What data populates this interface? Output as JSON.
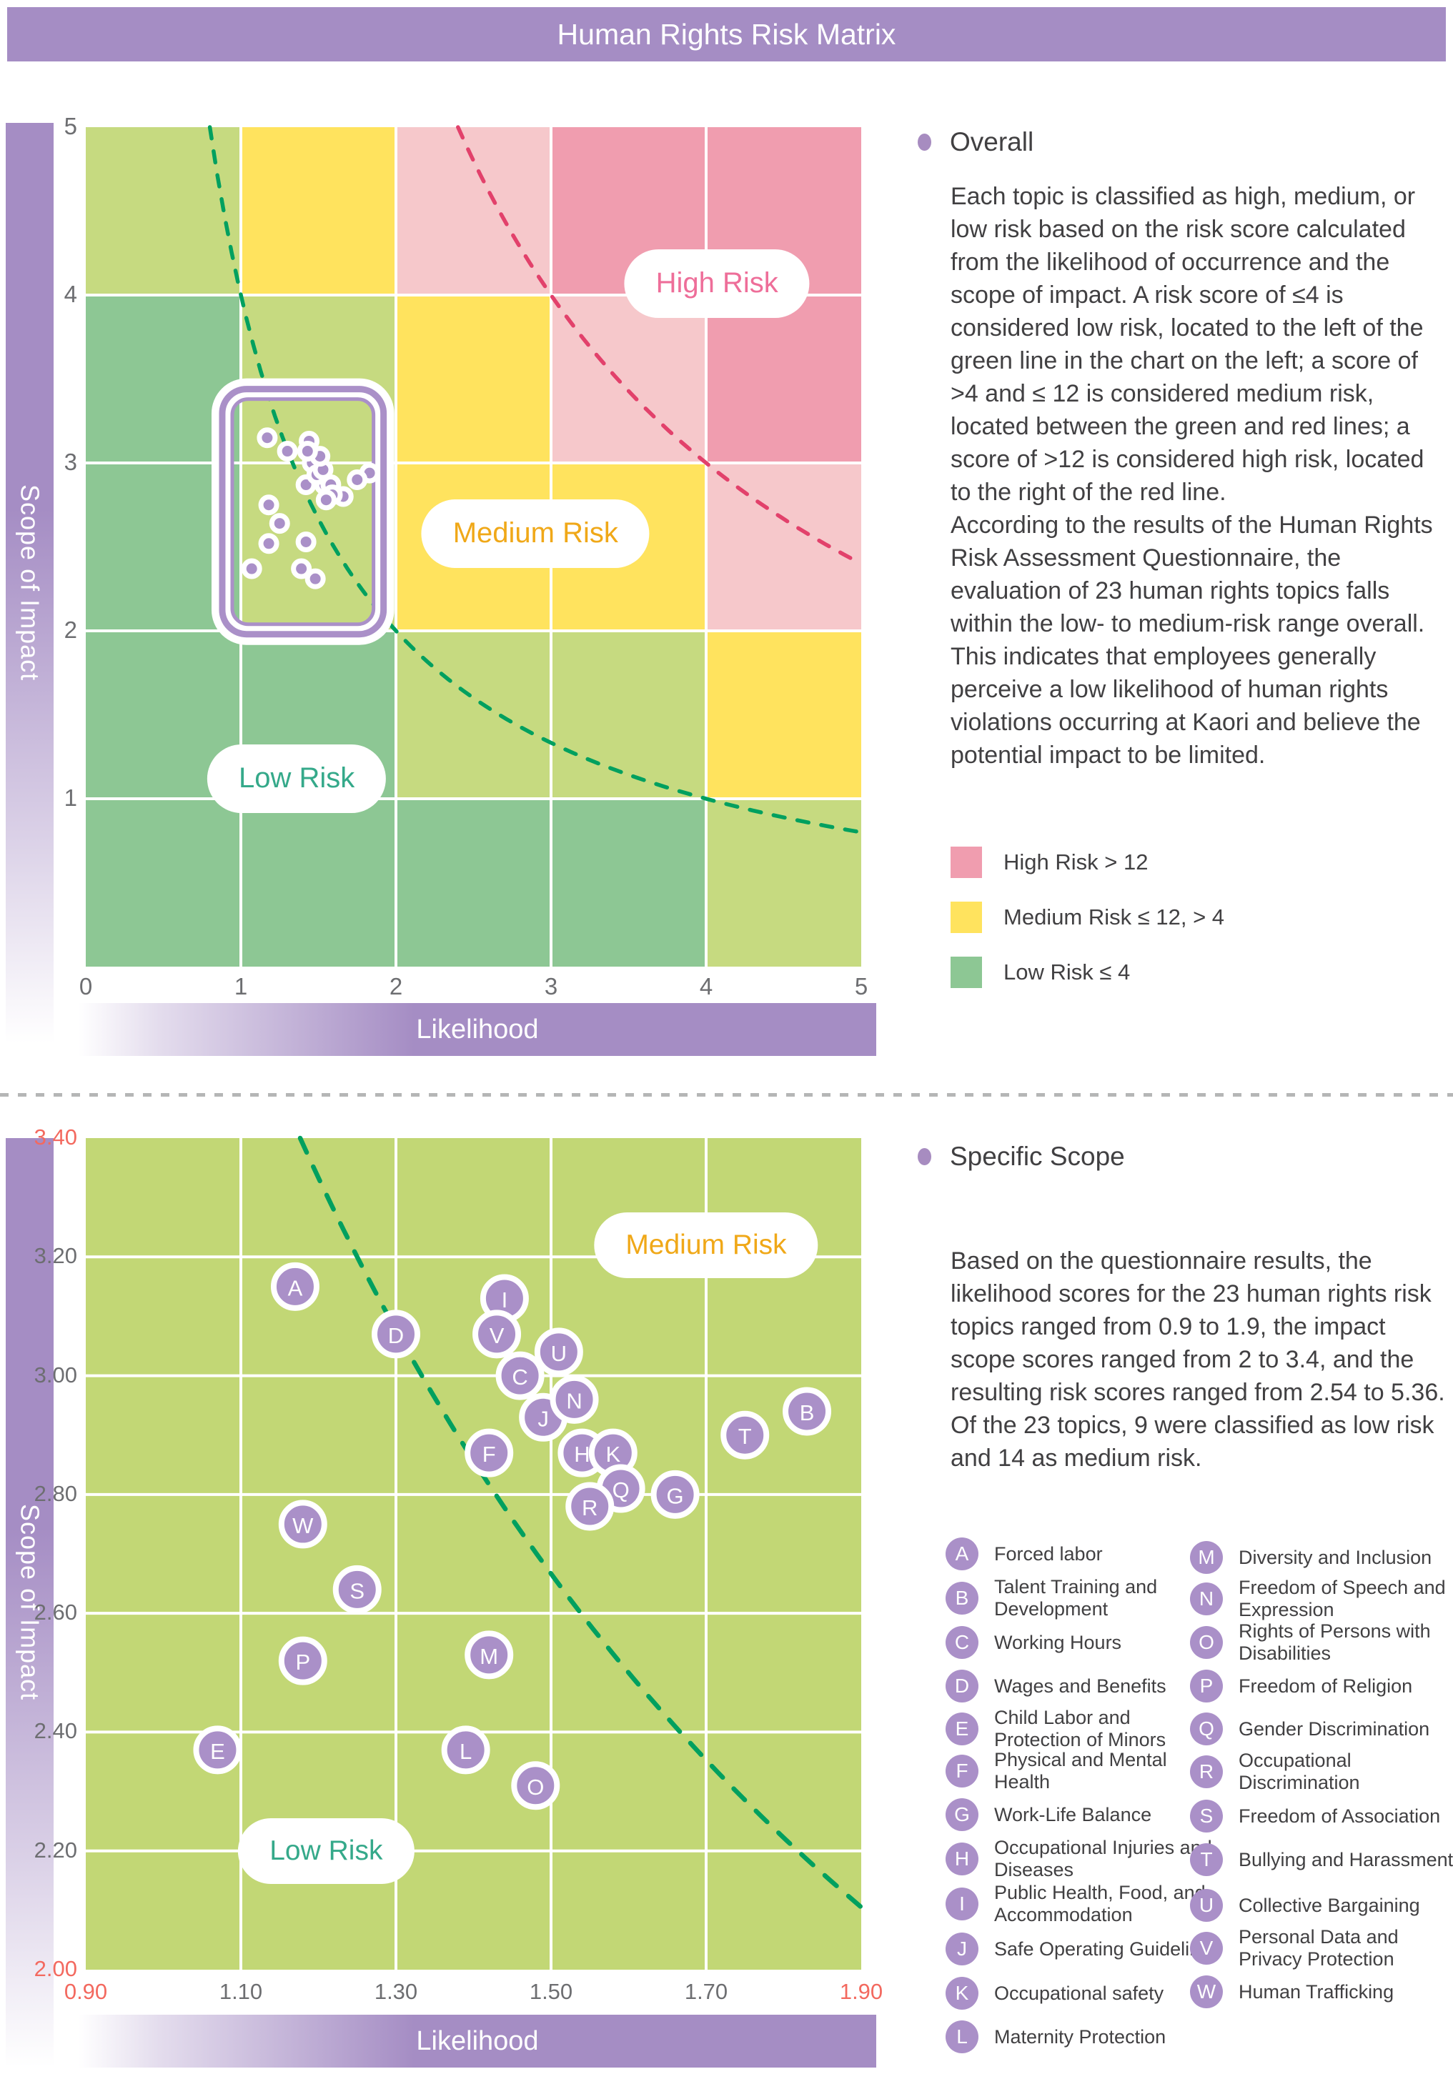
{
  "title": "Human Rights Risk Matrix",
  "palette": {
    "purple_bar": "#a58dc4",
    "dot_purple": "#aa90c8",
    "green_cell": "#8dc794",
    "yellow_green_cell": "#c6da80",
    "scatter_bg": "#c2d775",
    "yellow_cell": "#ffe35e",
    "light_pink_cell": "#f6c8cb",
    "dark_pink_cell": "#f09daf",
    "green_line": "#00a05f",
    "red_line": "#e2416b",
    "high_risk_text": "#ee6e99",
    "medium_risk_text": "#f0a818",
    "low_risk_text": "#35a98a",
    "tick_gray": "#6d6e71",
    "tick_accent": "#f3695f",
    "body_text": "#414042"
  },
  "axis": {
    "x_label": "Likelihood",
    "y_label": "Scope of Impact"
  },
  "overall": {
    "heading": "Overall",
    "p1": "Each topic is classified as high, medium, or low risk based on the risk score calculated from the likelihood of occurrence and the scope of impact. A risk score of ≤4 is considered low risk, located to the left of the green line in the chart on the left; a score of >4 and ≤ 12 is considered medium risk, located between the green and red lines; a score of >12 is considered high risk, located to the right of the red line.",
    "p2": "According to the results of the Human Rights Risk Assessment Questionnaire, the evaluation of 23 human rights topics falls within the low- to medium-risk range overall. This indicates that employees generally perceive a low likelihood of human rights violations occurring at Kaori and believe the potential impact to be limited.",
    "legend": [
      {
        "label": "High Risk > 12",
        "color": "#f09daf"
      },
      {
        "label": "Medium Risk ≤ 12, > 4",
        "color": "#ffe35e"
      },
      {
        "label": "Low Risk ≤ 4",
        "color": "#8dc794"
      }
    ]
  },
  "specific": {
    "heading": "Specific Scope",
    "p1": "Based on the questionnaire results, the likelihood scores for the 23 human rights risk topics ranged from 0.9 to 1.9, the impact scope scores ranged from 2 to 3.4, and the resulting risk scores ranged from 2.54 to 5.36. Of the 23 topics, 9 were classified as low risk and 14 as medium risk."
  },
  "topics": [
    {
      "letter": "A",
      "label": "Forced labor",
      "likelihood": 1.17,
      "impact": 3.15
    },
    {
      "letter": "B",
      "label": "Talent Training and\nDevelopment",
      "likelihood": 1.83,
      "impact": 2.94
    },
    {
      "letter": "C",
      "label": "Working Hours",
      "likelihood": 1.46,
      "impact": 3.0
    },
    {
      "letter": "D",
      "label": "Wages and Benefits",
      "likelihood": 1.3,
      "impact": 3.07
    },
    {
      "letter": "E",
      "label": "Child Labor and\nProtection of Minors",
      "likelihood": 1.07,
      "impact": 2.37
    },
    {
      "letter": "F",
      "label": "Physical and Mental\nHealth",
      "likelihood": 1.42,
      "impact": 2.87
    },
    {
      "letter": "G",
      "label": "Work-Life Balance",
      "likelihood": 1.66,
      "impact": 2.8
    },
    {
      "letter": "H",
      "label": "Occupational Injuries and\nDiseases",
      "likelihood": 1.54,
      "impact": 2.87
    },
    {
      "letter": "I",
      "label": "Public Health, Food, and\nAccommodation",
      "likelihood": 1.44,
      "impact": 3.13
    },
    {
      "letter": "J",
      "label": "Safe Operating Guidelines",
      "likelihood": 1.49,
      "impact": 2.93
    },
    {
      "letter": "K",
      "label": "Occupational safety",
      "likelihood": 1.58,
      "impact": 2.87
    },
    {
      "letter": "L",
      "label": "Maternity Protection",
      "likelihood": 1.39,
      "impact": 2.37
    },
    {
      "letter": "M",
      "label": "Diversity and Inclusion",
      "likelihood": 1.42,
      "impact": 2.53
    },
    {
      "letter": "N",
      "label": "Freedom of Speech and\nExpression",
      "likelihood": 1.53,
      "impact": 2.96
    },
    {
      "letter": "O",
      "label": "Rights of Persons with\nDisabilities",
      "likelihood": 1.48,
      "impact": 2.31
    },
    {
      "letter": "P",
      "label": "Freedom of Religion",
      "likelihood": 1.18,
      "impact": 2.52
    },
    {
      "letter": "Q",
      "label": "Gender Discrimination",
      "likelihood": 1.59,
      "impact": 2.81
    },
    {
      "letter": "R",
      "label": "Occupational\nDiscrimination",
      "likelihood": 1.55,
      "impact": 2.78
    },
    {
      "letter": "S",
      "label": "Freedom of Association",
      "likelihood": 1.25,
      "impact": 2.64
    },
    {
      "letter": "T",
      "label": "Bullying and Harassment",
      "likelihood": 1.75,
      "impact": 2.9
    },
    {
      "letter": "U",
      "label": "Collective Bargaining",
      "likelihood": 1.51,
      "impact": 3.04
    },
    {
      "letter": "V",
      "label": "Personal Data and\nPrivacy Protection",
      "likelihood": 1.43,
      "impact": 3.07
    },
    {
      "letter": "W",
      "label": "Human Trafficking",
      "likelihood": 1.18,
      "impact": 2.75
    }
  ],
  "chart_data": [
    {
      "type": "heatmap",
      "title": "Overall risk matrix",
      "xlabel": "Likelihood",
      "ylabel": "Scope of Impact",
      "xlim": [
        0,
        5
      ],
      "ylim": [
        0,
        5
      ],
      "xticks": [
        0,
        1,
        2,
        3,
        4,
        5
      ],
      "yticks": [
        1,
        2,
        3,
        4,
        5
      ],
      "grid": true,
      "cell_colors_rows_top_to_bottom": [
        [
          "yg",
          "y",
          "lp",
          "dp",
          "dp"
        ],
        [
          "g",
          "yg",
          "y",
          "lp",
          "dp"
        ],
        [
          "g",
          "yg",
          "y",
          "y",
          "lp"
        ],
        [
          "g",
          "g",
          "yg",
          "yg",
          "y"
        ],
        [
          "g",
          "g",
          "g",
          "g",
          "yg"
        ]
      ],
      "low_threshold": 4,
      "high_threshold": 12,
      "highlight_box": {
        "x0": 0.88,
        "x1": 1.92,
        "y0": 1.98,
        "y1": 3.44
      },
      "zone_labels": [
        {
          "text": "High Risk",
          "x": 4.07,
          "y": 4.07,
          "style": "high"
        },
        {
          "text": "Medium Risk",
          "x": 2.9,
          "y": 2.58,
          "style": "medium"
        },
        {
          "text": "Low Risk",
          "x": 1.36,
          "y": 1.12,
          "style": "low"
        }
      ],
      "points": "topics"
    },
    {
      "type": "scatter",
      "title": "Specific scope scatter",
      "xlabel": "Likelihood",
      "ylabel": "Scope of Impact",
      "xlim": [
        0.9,
        1.9
      ],
      "ylim": [
        2.0,
        3.4
      ],
      "xticks": [
        0.9,
        1.1,
        1.3,
        1.5,
        1.7,
        1.9
      ],
      "yticks": [
        2.0,
        2.2,
        2.4,
        2.6,
        2.8,
        3.0,
        3.2,
        3.4
      ],
      "accent_xticks": [
        0.9,
        1.9
      ],
      "accent_yticks": [
        2.0,
        3.4
      ],
      "grid": true,
      "low_threshold": 4,
      "zone_labels": [
        {
          "text": "Medium Risk",
          "x": 1.7,
          "y": 3.22,
          "style": "medium"
        },
        {
          "text": "Low Risk",
          "x": 1.21,
          "y": 2.2,
          "style": "low"
        }
      ],
      "points": "topics",
      "risk_score_range": [
        2.54,
        5.36
      ],
      "low_risk_count": 9,
      "medium_risk_count": 14
    }
  ]
}
